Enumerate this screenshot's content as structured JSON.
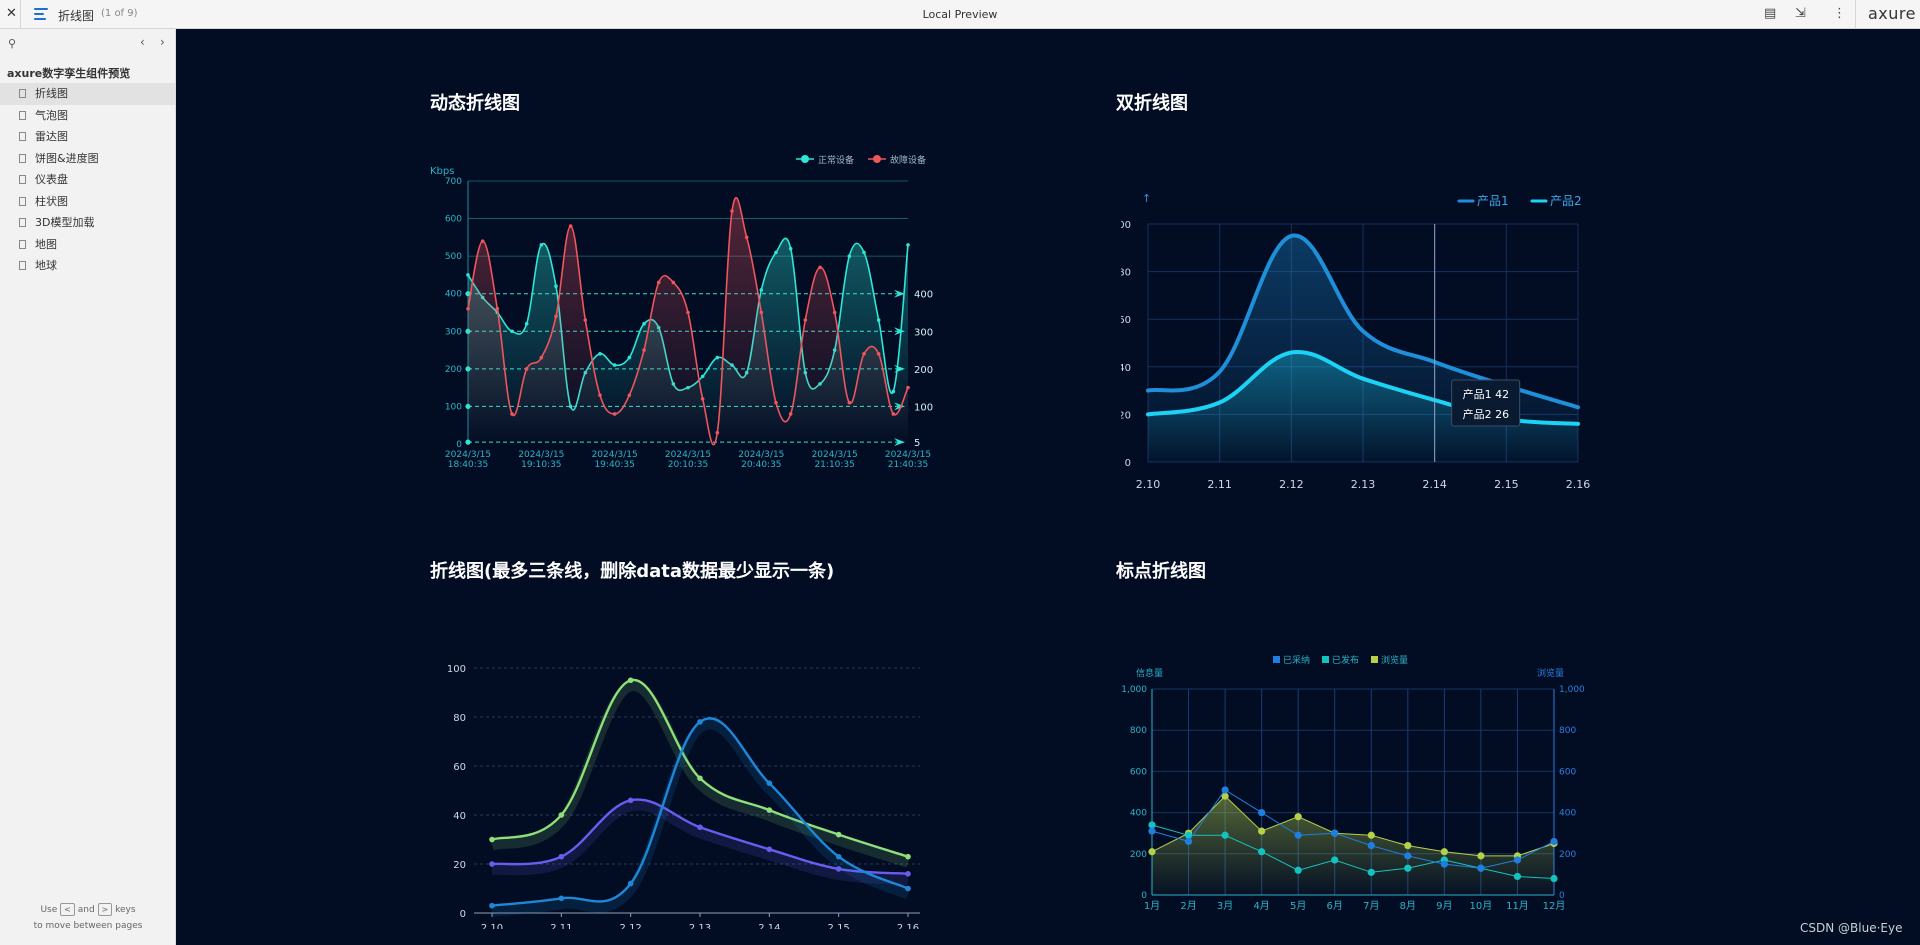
{
  "topbar": {
    "close_icon": "close-icon",
    "page_name": "折线图",
    "page_count": "(1 of 9)",
    "center_title": "Local Preview",
    "brand": "axure"
  },
  "sidebar": {
    "project_name": "axure数字孪生组件预览",
    "pages": [
      "折线图",
      "气泡图",
      "雷达图",
      "饼图&进度图",
      "仪表盘",
      "柱状图",
      "3D模型加载",
      "地图",
      "地球"
    ],
    "hint": {
      "use": "Use",
      "and": "and",
      "keys": "keys",
      "line2": "to move between pages",
      "prev_key": "<",
      "next_key": ">"
    }
  },
  "watermark": "CSDN @Blue·Eye",
  "colors": {
    "bg": "#020d24",
    "cyan": "#2ee6d6",
    "red": "#f0545c",
    "blue1": "#1e8fd8",
    "blue2": "#1cd2f5",
    "green": "#8ee07a",
    "purple": "#6b5cf0",
    "lime": "#b5d14a"
  },
  "chart_data": [
    {
      "type": "line",
      "title": "动态折线图",
      "ylabel": "Kbps",
      "ylim": [
        0,
        700
      ],
      "yticks": [
        "0",
        "100",
        "200",
        "300",
        "400",
        "500",
        "600",
        "700"
      ],
      "xtick_labels": [
        [
          "2024/3/15",
          "18:40:35"
        ],
        [
          "2024/3/15",
          "19:10:35"
        ],
        [
          "2024/3/15",
          "19:40:35"
        ],
        [
          "2024/3/15",
          "20:10:35"
        ],
        [
          "2024/3/15",
          "20:40:35"
        ],
        [
          "2024/3/15",
          "21:10:35"
        ],
        [
          "2024/3/15",
          "21:40:35"
        ]
      ],
      "x_range": [
        0,
        30
      ],
      "series": [
        {
          "name": "正常设备",
          "color": "#2ee6d6",
          "x": [
            0,
            1,
            2,
            3,
            4,
            5,
            6,
            7,
            8,
            9,
            10,
            11,
            12,
            13,
            14,
            15,
            16,
            17,
            18,
            19,
            20,
            21,
            22,
            23,
            24,
            25,
            26,
            27,
            28,
            29,
            30
          ],
          "values": [
            450,
            390,
            350,
            300,
            320,
            530,
            420,
            100,
            190,
            240,
            210,
            230,
            320,
            310,
            160,
            150,
            180,
            230,
            210,
            190,
            410,
            510,
            520,
            190,
            160,
            250,
            500,
            510,
            330,
            140,
            530
          ]
        },
        {
          "name": "故障设备",
          "color": "#f0545c",
          "x": [
            0,
            1,
            2,
            3,
            4,
            5,
            6,
            7,
            8,
            9,
            10,
            11,
            12,
            13,
            14,
            15,
            16,
            17,
            18,
            19,
            20,
            21,
            22,
            23,
            24,
            25,
            26,
            27,
            28,
            29,
            30
          ],
          "values": [
            360,
            540,
            360,
            80,
            200,
            230,
            340,
            580,
            330,
            130,
            80,
            130,
            250,
            430,
            430,
            350,
            120,
            30,
            620,
            550,
            350,
            110,
            80,
            330,
            470,
            350,
            110,
            240,
            240,
            80,
            150
          ]
        }
      ],
      "markers": [
        {
          "label": "400",
          "y": 400
        },
        {
          "label": "300",
          "y": 300
        },
        {
          "label": "200",
          "y": 200
        },
        {
          "label": "100",
          "y": 100
        },
        {
          "label": "5",
          "y": 5
        }
      ]
    },
    {
      "type": "area",
      "title": "双折线图",
      "ylim": [
        0,
        100
      ],
      "yticks": [
        "0",
        "20",
        "40",
        "60",
        "80",
        "100"
      ],
      "categories": [
        "2.10",
        "2.11",
        "2.12",
        "2.13",
        "2.14",
        "2.15",
        "2.16"
      ],
      "series": [
        {
          "name": "产品1",
          "color": "#1e8fd8",
          "values": [
            30,
            38,
            95,
            55,
            42,
            32,
            23
          ]
        },
        {
          "name": "产品2",
          "color": "#1cd2f5",
          "values": [
            20,
            25,
            46,
            35,
            26,
            18,
            16
          ]
        }
      ],
      "tooltip": {
        "rows": [
          {
            "name": "产品1",
            "value": "42"
          },
          {
            "name": "产品2",
            "value": "26"
          }
        ],
        "at": "2.14"
      },
      "yaxis_symbol": "↑"
    },
    {
      "type": "line",
      "title": "折线图(最多三条线，删除data数据最少显示一条)",
      "ylim": [
        0,
        100
      ],
      "yticks": [
        "0",
        "20",
        "40",
        "60",
        "80",
        "100"
      ],
      "categories": [
        "2.10",
        "2.11",
        "2.12",
        "2.13",
        "2.14",
        "2.15",
        "2.16"
      ],
      "series": [
        {
          "name": "A",
          "color": "#8ee07a",
          "values": [
            30,
            40,
            95,
            55,
            42,
            32,
            23
          ]
        },
        {
          "name": "B",
          "color": "#6b5cf0",
          "values": [
            20,
            23,
            46,
            35,
            26,
            18,
            16
          ]
        },
        {
          "name": "C",
          "color": "#1e88d8",
          "values": [
            3,
            6,
            12,
            78,
            53,
            23,
            10
          ]
        }
      ]
    },
    {
      "type": "line",
      "title": "标点折线图",
      "legend": [
        "已采纳",
        "已发布",
        "浏览量"
      ],
      "ylabel_left": "信息量",
      "ylabel_right": "浏览量",
      "ylim": [
        0,
        1000
      ],
      "yticks": [
        "0",
        "200",
        "400",
        "600",
        "800",
        "1,000"
      ],
      "categories": [
        "1月",
        "2月",
        "3月",
        "4月",
        "5月",
        "6月",
        "7月",
        "8月",
        "9月",
        "10月",
        "11月",
        "12月"
      ],
      "series": [
        {
          "name": "已采纳",
          "color": "#1e7fe0",
          "values": [
            310,
            260,
            510,
            400,
            290,
            300,
            240,
            190,
            150,
            130,
            170,
            260
          ]
        },
        {
          "name": "已发布",
          "color": "#14c3c0",
          "values": [
            340,
            290,
            290,
            210,
            120,
            170,
            110,
            130,
            170,
            130,
            90,
            80
          ]
        },
        {
          "name": "浏览量",
          "color": "#b5d14a",
          "values": [
            210,
            300,
            480,
            310,
            380,
            300,
            290,
            240,
            210,
            190,
            190,
            250
          ]
        }
      ]
    }
  ]
}
